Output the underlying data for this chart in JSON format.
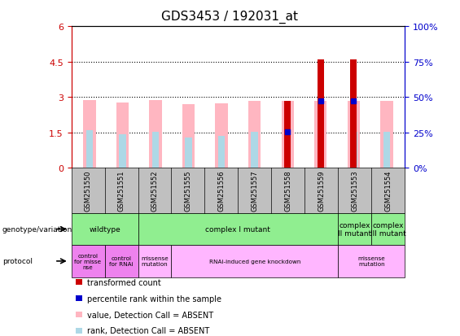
{
  "title": "GDS3453 / 192031_at",
  "samples": [
    "GSM251550",
    "GSM251551",
    "GSM251552",
    "GSM251555",
    "GSM251556",
    "GSM251557",
    "GSM251558",
    "GSM251559",
    "GSM251553",
    "GSM251554"
  ],
  "pink_bar_heights": [
    2.85,
    2.75,
    2.85,
    2.7,
    2.72,
    2.82,
    2.82,
    2.82,
    2.82,
    2.82
  ],
  "light_blue_bar_heights": [
    1.6,
    1.4,
    1.52,
    1.27,
    1.33,
    1.52,
    1.52,
    1.52,
    1.52,
    1.52
  ],
  "red_bar_heights": [
    0,
    0,
    0,
    0,
    0,
    0,
    2.82,
    4.6,
    4.6,
    0
  ],
  "blue_square_heights": [
    0,
    0,
    0,
    0,
    0,
    0,
    1.52,
    2.82,
    2.82,
    0
  ],
  "has_red": [
    false,
    false,
    false,
    false,
    false,
    false,
    true,
    true,
    true,
    false
  ],
  "has_blue_square": [
    false,
    false,
    false,
    false,
    false,
    false,
    true,
    true,
    true,
    false
  ],
  "ylim_left": [
    0,
    6
  ],
  "yticks_left": [
    0,
    1.5,
    3,
    4.5,
    6
  ],
  "ylim_right": [
    0,
    100
  ],
  "yticks_right": [
    0,
    25,
    50,
    75,
    100
  ],
  "left_tick_labels": [
    "0",
    "1.5",
    "3",
    "4.5",
    "6"
  ],
  "right_tick_labels": [
    "0%",
    "25%",
    "50%",
    "75%",
    "100%"
  ],
  "genotype_groups": [
    {
      "label": "wildtype",
      "start": 0,
      "end": 2,
      "color": "#90EE90"
    },
    {
      "label": "complex I mutant",
      "start": 2,
      "end": 8,
      "color": "#90EE90"
    },
    {
      "label": "complex\nII mutant",
      "start": 8,
      "end": 9,
      "color": "#90EE90"
    },
    {
      "label": "complex\nIII mutant",
      "start": 9,
      "end": 10,
      "color": "#90EE90"
    }
  ],
  "protocol_groups": [
    {
      "label": "control\nfor misse\nnse",
      "start": 0,
      "end": 1,
      "color": "#EE82EE"
    },
    {
      "label": "control\nfor RNAi",
      "start": 1,
      "end": 2,
      "color": "#EE82EE"
    },
    {
      "label": "missense\nmutation",
      "start": 2,
      "end": 3,
      "#FFB6FF": "#FFB6FF",
      "color": "#FFB6FF"
    },
    {
      "label": "RNAi-induced gene knockdown",
      "start": 3,
      "end": 8,
      "color": "#FFB6FF"
    },
    {
      "label": "missense\nmutation",
      "start": 8,
      "end": 10,
      "color": "#FFB6FF"
    }
  ],
  "pink_color": "#FFB6C1",
  "light_blue_color": "#ADD8E6",
  "red_color": "#CC0000",
  "blue_color": "#0000CC",
  "left_axis_color": "#CC0000",
  "right_axis_color": "#0000CC",
  "gray_color": "#C0C0C0",
  "plot_bg_color": "#FFFFFF"
}
